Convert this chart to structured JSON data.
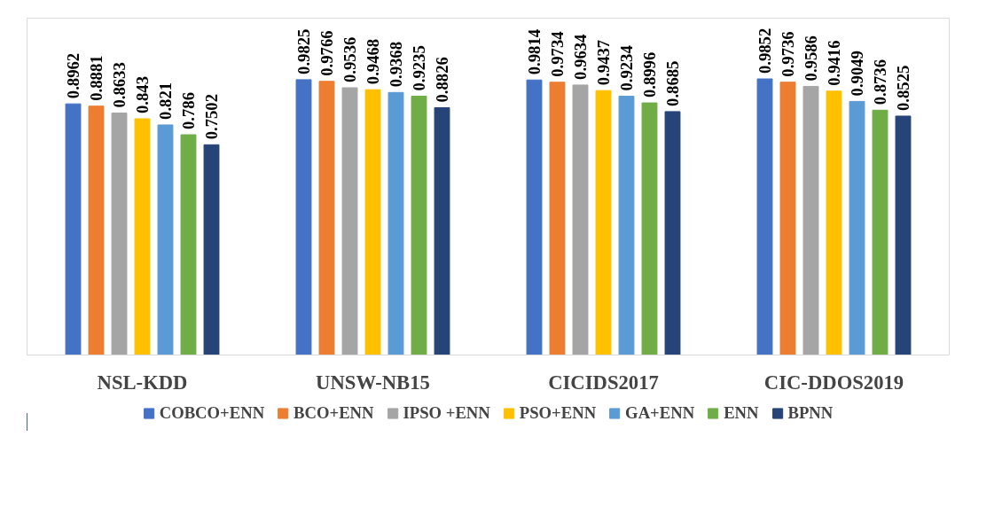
{
  "chart_data": {
    "type": "bar",
    "categories": [
      "NSL-KDD",
      "UNSW-NB15",
      "CICIDS2017",
      "CIC-DDOS2019"
    ],
    "series": [
      {
        "name": "COBCO+ENN",
        "color": "#4472c4",
        "values": [
          0.8962,
          0.9825,
          0.9814,
          0.9852
        ]
      },
      {
        "name": "BCO+ENN",
        "color": "#ed7d31",
        "values": [
          0.8881,
          0.9766,
          0.9734,
          0.9736
        ]
      },
      {
        "name": "IPSO +ENN",
        "color": "#a5a5a5",
        "values": [
          0.8633,
          0.9536,
          0.9634,
          0.9586
        ]
      },
      {
        "name": "PSO+ENN",
        "color": "#ffc000",
        "values": [
          0.843,
          0.9468,
          0.9437,
          0.9416
        ]
      },
      {
        "name": "GA+ENN",
        "color": "#5b9bd5",
        "values": [
          0.821,
          0.9368,
          0.9234,
          0.9049
        ]
      },
      {
        "name": "ENN",
        "color": "#70ad47",
        "values": [
          0.786,
          0.9235,
          0.8996,
          0.8736
        ]
      },
      {
        "name": "BPNN",
        "color": "#264478",
        "values": [
          0.7502,
          0.8826,
          0.8685,
          0.8525
        ]
      }
    ],
    "data_labels": true,
    "legend": "bottom"
  }
}
